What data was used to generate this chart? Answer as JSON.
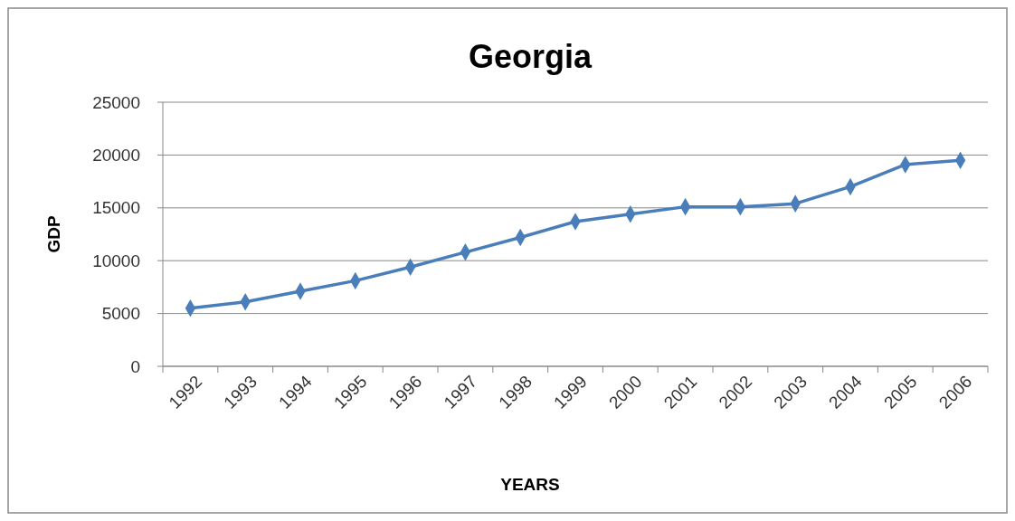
{
  "chart_data": {
    "type": "line",
    "title": "Georgia",
    "xlabel": "YEARS",
    "ylabel": "GDP",
    "categories": [
      "1992",
      "1993",
      "1994",
      "1995",
      "1996",
      "1997",
      "1998",
      "1999",
      "2000",
      "2001",
      "2002",
      "2003",
      "2004",
      "2005",
      "2006"
    ],
    "series": [
      {
        "color": "#4a7ebb",
        "values": [
          5500,
          6100,
          7100,
          8100,
          9400,
          10800,
          12200,
          13700,
          14400,
          15100,
          15100,
          15400,
          17000,
          19100,
          19500
        ]
      }
    ],
    "ylim": [
      0,
      25000
    ],
    "yticks": [
      0,
      5000,
      10000,
      15000,
      20000,
      25000
    ],
    "grid": "y",
    "marker": "diamond",
    "line_style": "solid"
  }
}
